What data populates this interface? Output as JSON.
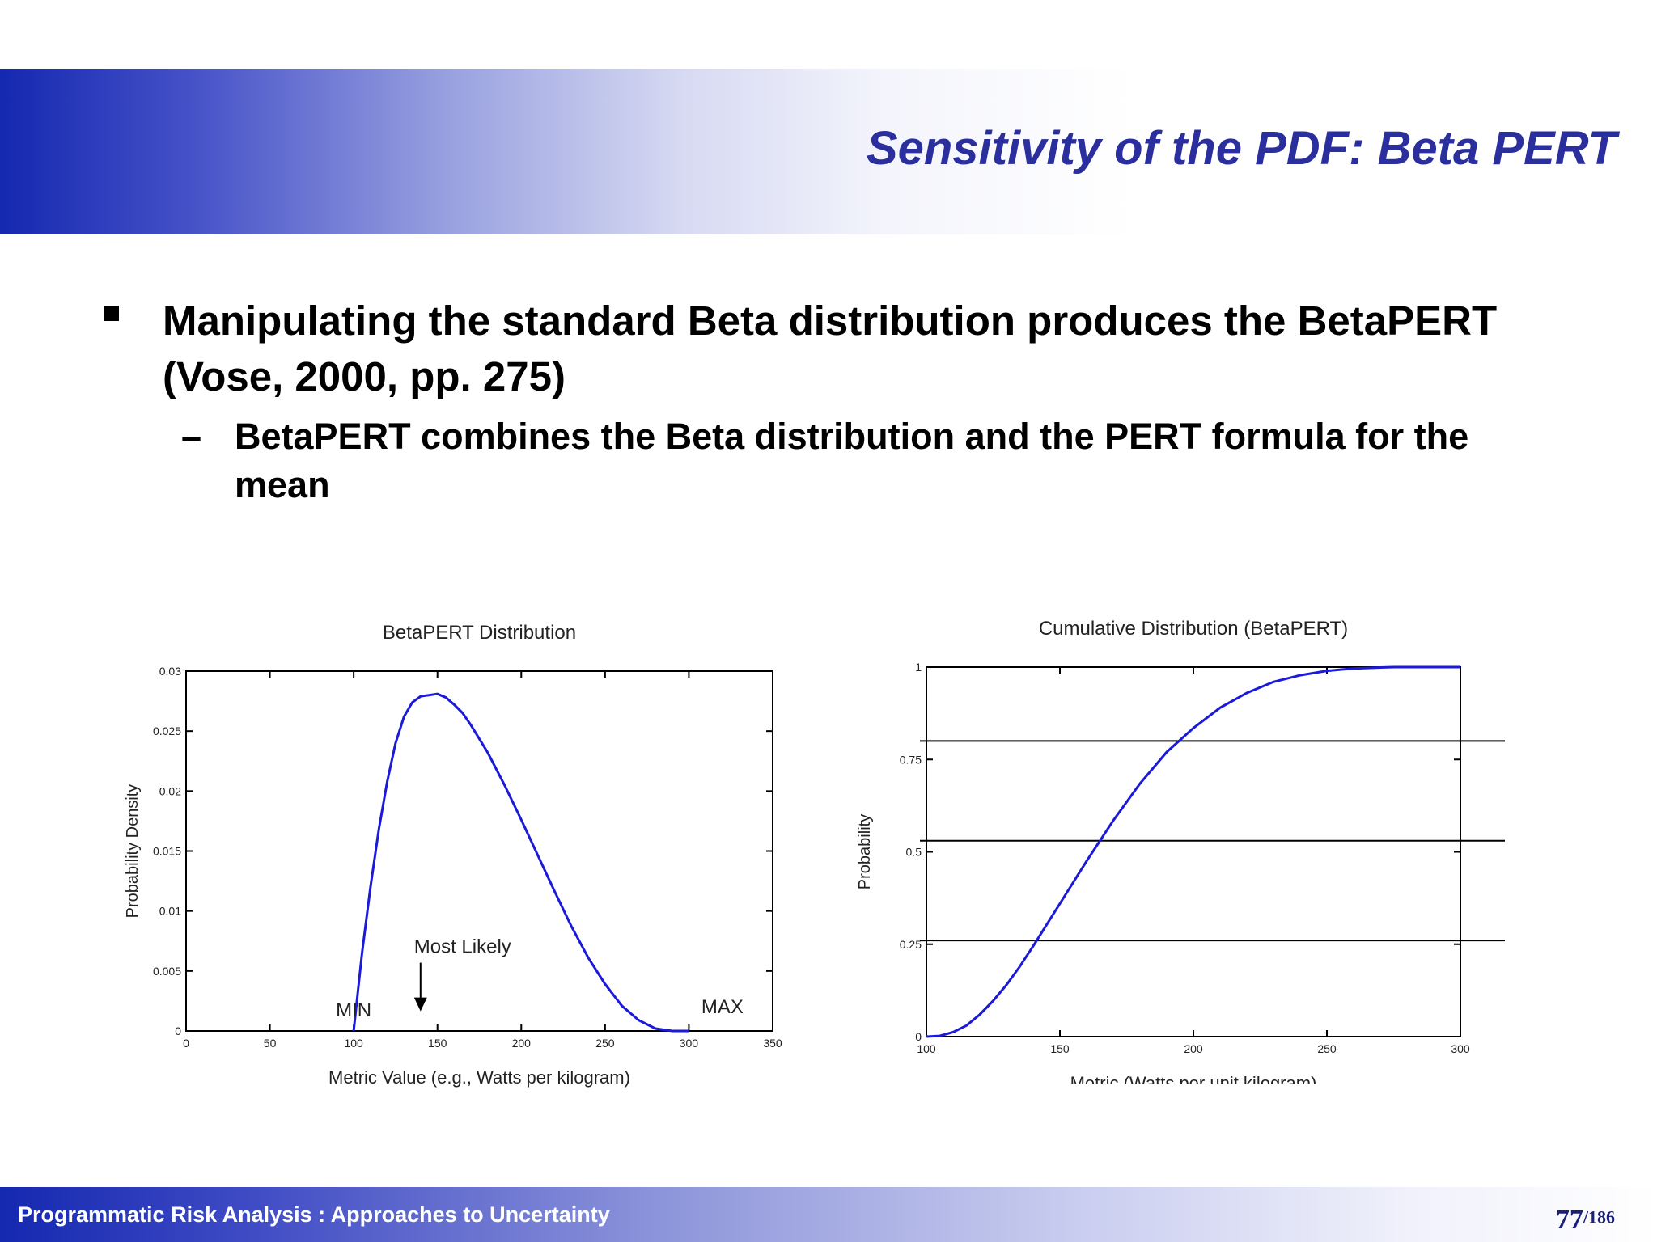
{
  "slide": {
    "title": "Sensitivity of the PDF: Beta PERT",
    "bullet": "Manipulating the standard Beta distribution produces the BetaPERT (Vose, 2000, pp. 275)",
    "sub_bullet_dash": "–",
    "sub_bullet": "BetaPERT combines the Beta distribution and the PERT formula for the mean",
    "footer": "Programmatic Risk Analysis  : Approaches to Uncertainty",
    "page_current": "77",
    "page_total": "/186"
  },
  "colors": {
    "title": "#2b2f9e",
    "curve": "#1a1ad8",
    "band_dark": "#1428b0",
    "footer_text": "#ffffff"
  },
  "chart_data": [
    {
      "type": "line",
      "title": "BetaPERT Distribution",
      "xlabel": "Metric Value (e.g., Watts per kilogram)",
      "ylabel": "Probability Density",
      "xlim": [
        0,
        350
      ],
      "ylim": [
        0,
        0.03
      ],
      "x_ticks": [
        "0",
        "50",
        "100",
        "150",
        "200",
        "250",
        "300",
        "350"
      ],
      "y_ticks": [
        "0",
        "0.005",
        "0.01",
        "0.015",
        "0.02",
        "0.025",
        "0.03"
      ],
      "grid": false,
      "annotations": [
        {
          "text": "MIN",
          "x": 100,
          "y": 0.0012
        },
        {
          "text": "Most Likely",
          "x": 165,
          "y": 0.0065
        },
        {
          "text": "MAX",
          "x": 320,
          "y": 0.0015
        }
      ],
      "series": [
        {
          "values": [
            [
              100,
              0
            ],
            [
              105,
              0.0065
            ],
            [
              110,
              0.012
            ],
            [
              115,
              0.0168
            ],
            [
              120,
              0.0208
            ],
            [
              125,
              0.024
            ],
            [
              130,
              0.0262
            ],
            [
              135,
              0.0274
            ],
            [
              140,
              0.0279
            ],
            [
              145,
              0.028
            ],
            [
              150,
              0.0281
            ],
            [
              155,
              0.0278
            ],
            [
              160,
              0.0272
            ],
            [
              165,
              0.0265
            ],
            [
              170,
              0.0255
            ],
            [
              180,
              0.0232
            ],
            [
              190,
              0.0205
            ],
            [
              200,
              0.0176
            ],
            [
              210,
              0.0146
            ],
            [
              220,
              0.0116
            ],
            [
              230,
              0.0087
            ],
            [
              240,
              0.0061
            ],
            [
              250,
              0.0039
            ],
            [
              260,
              0.0021
            ],
            [
              270,
              0.0009
            ],
            [
              280,
              0.0002
            ],
            [
              290,
              0.0
            ],
            [
              300,
              0.0
            ]
          ]
        }
      ]
    },
    {
      "type": "line",
      "title": "Cumulative Distribution (BetaPERT)",
      "xlabel": "Metric (Watts per unit kilogram)",
      "ylabel": "Probability",
      "xlim": [
        100,
        300
      ],
      "ylim": [
        0,
        1
      ],
      "x_ticks": [
        "100",
        "150",
        "200",
        "250",
        "300"
      ],
      "y_ticks": [
        "0",
        "0.25",
        "0.5",
        "0.75",
        "1"
      ],
      "grid": false,
      "reference_lines": [
        0.8,
        0.53,
        0.26
      ],
      "series": [
        {
          "values": [
            [
              100,
              0.0
            ],
            [
              105,
              0.002
            ],
            [
              110,
              0.012
            ],
            [
              115,
              0.03
            ],
            [
              120,
              0.06
            ],
            [
              125,
              0.097
            ],
            [
              130,
              0.14
            ],
            [
              135,
              0.19
            ],
            [
              140,
              0.245
            ],
            [
              150,
              0.36
            ],
            [
              160,
              0.475
            ],
            [
              170,
              0.585
            ],
            [
              180,
              0.685
            ],
            [
              190,
              0.77
            ],
            [
              200,
              0.835
            ],
            [
              210,
              0.89
            ],
            [
              220,
              0.93
            ],
            [
              230,
              0.96
            ],
            [
              240,
              0.978
            ],
            [
              250,
              0.99
            ],
            [
              260,
              0.996
            ],
            [
              270,
              0.999
            ],
            [
              275,
              1.0
            ],
            [
              300,
              1.0
            ]
          ]
        }
      ]
    }
  ]
}
